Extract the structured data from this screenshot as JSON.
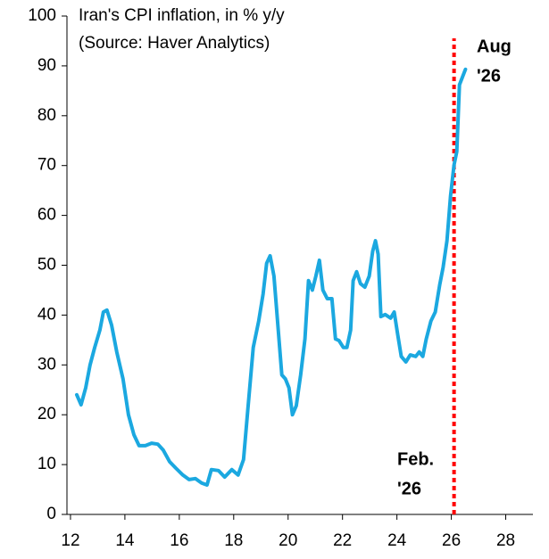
{
  "chart_data": {
    "type": "line",
    "title": "Iran's CPI inflation, in % y/y",
    "subtitle": "(Source: Haver Analytics)",
    "x": [
      12.23,
      12.39,
      12.56,
      12.72,
      12.89,
      13.08,
      13.21,
      13.34,
      13.51,
      13.7,
      13.93,
      14.13,
      14.33,
      14.52,
      14.75,
      14.98,
      15.21,
      15.41,
      15.64,
      15.87,
      16.13,
      16.36,
      16.59,
      16.82,
      17.02,
      17.18,
      17.44,
      17.67,
      17.93,
      18.16,
      18.36,
      18.52,
      18.72,
      18.92,
      19.08,
      19.21,
      19.34,
      19.48,
      19.61,
      19.77,
      19.9,
      20.03,
      20.16,
      20.3,
      20.46,
      20.62,
      20.75,
      20.89,
      21.02,
      21.15,
      21.28,
      21.44,
      21.61,
      21.74,
      21.87,
      22.03,
      22.16,
      22.3,
      22.39,
      22.52,
      22.66,
      22.82,
      22.98,
      23.11,
      23.21,
      23.31,
      23.41,
      23.57,
      23.77,
      23.9,
      24.03,
      24.16,
      24.33,
      24.49,
      24.69,
      24.82,
      24.95,
      25.08,
      25.25,
      25.41,
      25.57,
      25.7,
      25.84,
      25.97,
      26.1,
      26.2,
      26.3,
      26.39,
      26.52
    ],
    "series": [
      {
        "color": "#1ba8e0",
        "values": [
          24,
          22,
          25.4,
          30,
          33.5,
          37,
          40.6,
          41,
          38,
          32.6,
          27.2,
          20,
          16,
          13.8,
          13.8,
          14.3,
          14.1,
          12.9,
          10.6,
          9.3,
          7.9,
          7,
          7.2,
          6.3,
          5.9,
          9,
          8.8,
          7.5,
          9,
          7.9,
          11,
          21,
          33.5,
          38.8,
          44.2,
          50.4,
          51.9,
          47.8,
          38.8,
          28,
          27.2,
          25.4,
          20,
          21.8,
          28,
          35.2,
          46.9,
          45,
          47.8,
          51,
          45,
          43.3,
          43.3,
          35.2,
          34.9,
          33.5,
          33.5,
          37,
          46.9,
          48.7,
          46.3,
          45.6,
          47.8,
          52.8,
          54.9,
          52.2,
          39.7,
          40.1,
          39.4,
          40.6,
          36.1,
          31.7,
          30.6,
          32,
          31.7,
          32.6,
          31.7,
          35.2,
          38.8,
          40.6,
          46,
          49.6,
          54.9,
          63.9,
          70.1,
          72.8,
          86.2,
          87.5,
          89.3
        ]
      }
    ],
    "xlim": [
      11.87,
      29
    ],
    "xticks": [
      12,
      14,
      16,
      18,
      20,
      22,
      24,
      26,
      28
    ],
    "ylim": [
      0,
      100
    ],
    "yticks": [
      0,
      10,
      20,
      30,
      40,
      50,
      60,
      70,
      80,
      90,
      100
    ],
    "vline": {
      "x": 26.1,
      "color": "#ff0000"
    },
    "annotations": [
      {
        "lines": [
          "Feb.",
          "'26"
        ],
        "color": "#e00000"
      },
      {
        "lines": [
          "Aug",
          "'26"
        ],
        "color": "#1ba8e0"
      }
    ]
  }
}
